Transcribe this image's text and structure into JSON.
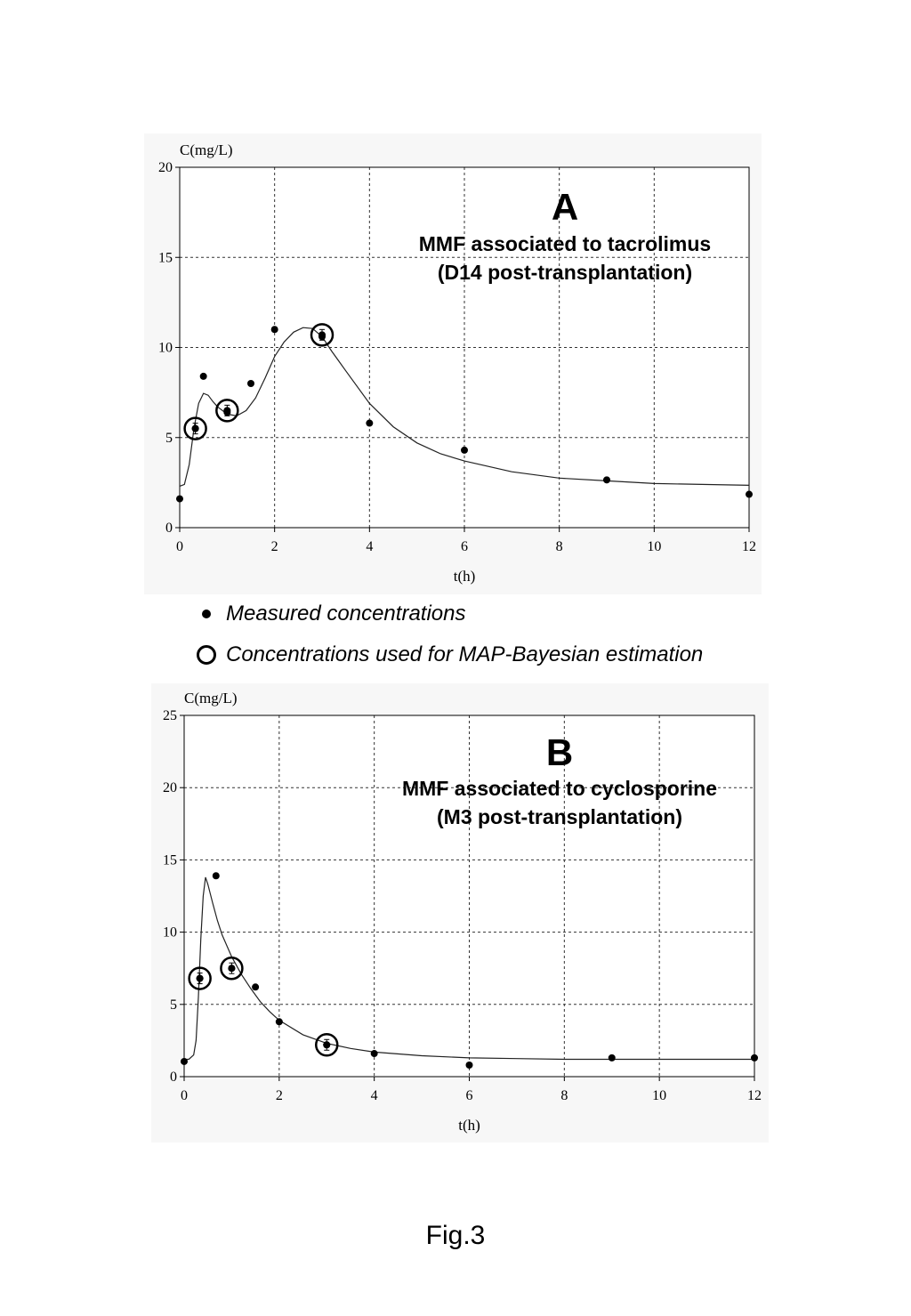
{
  "figure_caption": "Fig.3",
  "legend": {
    "measured": "Measured concentrations",
    "map": "Concentrations used for MAP-Bayesian estimation"
  },
  "chart_data": [
    {
      "type": "scatter",
      "panel_letter": "A",
      "title_line1": "MMF associated to tacrolimus",
      "title_line2": "(D14 post-transplantation)",
      "ylabel": "C(mg/L)",
      "xlabel": "t(h)",
      "xlim": [
        0,
        12
      ],
      "ylim": [
        0,
        20
      ],
      "xticks": [
        0,
        2,
        4,
        6,
        8,
        10,
        12
      ],
      "yticks": [
        0,
        5,
        10,
        15,
        20
      ],
      "grid": true,
      "series": [
        {
          "role": "measured",
          "x": [
            0,
            0.33,
            0.5,
            1,
            1.5,
            2,
            3,
            4,
            6,
            9,
            12
          ],
          "y": [
            1.6,
            5.5,
            8.4,
            6.4,
            8.0,
            11.0,
            10.6,
            5.8,
            4.3,
            2.65,
            1.85
          ]
        },
        {
          "role": "map_bayesian",
          "x": [
            0.33,
            1,
            3
          ],
          "y": [
            5.5,
            6.5,
            10.7
          ]
        },
        {
          "role": "fitted_curve",
          "x": [
            0,
            0.1,
            0.2,
            0.3,
            0.4,
            0.5,
            0.6,
            0.7,
            0.8,
            1.0,
            1.2,
            1.4,
            1.6,
            1.8,
            2.0,
            2.2,
            2.4,
            2.6,
            2.8,
            3.0,
            3.2,
            3.5,
            4.0,
            4.5,
            5.0,
            5.5,
            6.0,
            7.0,
            8.0,
            9.0,
            10.0,
            11.0,
            12.0
          ],
          "y": [
            2.3,
            2.4,
            3.5,
            5.5,
            6.9,
            7.45,
            7.35,
            7.0,
            6.7,
            6.3,
            6.2,
            6.5,
            7.2,
            8.3,
            9.5,
            10.3,
            10.85,
            11.1,
            11.05,
            10.6,
            9.8,
            8.7,
            6.9,
            5.6,
            4.7,
            4.1,
            3.7,
            3.1,
            2.75,
            2.6,
            2.45,
            2.4,
            2.35
          ]
        }
      ]
    },
    {
      "type": "scatter",
      "panel_letter": "B",
      "title_line1": "MMF associated to cyclosporine",
      "title_line2": "(M3 post-transplantation)",
      "ylabel": "C(mg/L)",
      "xlabel": "t(h)",
      "xlim": [
        0,
        12
      ],
      "ylim": [
        0,
        25
      ],
      "xticks": [
        0,
        2,
        4,
        6,
        8,
        10,
        12
      ],
      "yticks": [
        0,
        5,
        10,
        15,
        20,
        25
      ],
      "grid": true,
      "series": [
        {
          "role": "measured",
          "x": [
            0,
            0.33,
            0.67,
            1,
            1.5,
            2,
            3,
            4,
            6,
            9,
            12
          ],
          "y": [
            1.05,
            6.8,
            13.9,
            7.5,
            6.2,
            3.8,
            2.2,
            1.6,
            0.8,
            1.3,
            1.3
          ]
        },
        {
          "role": "map_bayesian",
          "x": [
            0.33,
            1,
            3
          ],
          "y": [
            6.8,
            7.5,
            2.2
          ]
        },
        {
          "role": "fitted_curve",
          "x": [
            0,
            0.1,
            0.2,
            0.25,
            0.3,
            0.35,
            0.4,
            0.45,
            0.5,
            0.6,
            0.7,
            0.8,
            1.0,
            1.2,
            1.4,
            1.6,
            1.8,
            2.0,
            2.5,
            3.0,
            3.5,
            4.0,
            5.0,
            6.0,
            7.0,
            8.0,
            9.0,
            10.0,
            11.0,
            12.0
          ],
          "y": [
            1.2,
            1.2,
            1.5,
            2.5,
            5.5,
            9.5,
            12.5,
            13.8,
            13.3,
            12.0,
            10.8,
            9.8,
            8.3,
            7.1,
            6.1,
            5.2,
            4.5,
            3.9,
            2.9,
            2.3,
            1.95,
            1.7,
            1.45,
            1.3,
            1.25,
            1.2,
            1.2,
            1.2,
            1.2,
            1.2
          ]
        }
      ]
    }
  ]
}
